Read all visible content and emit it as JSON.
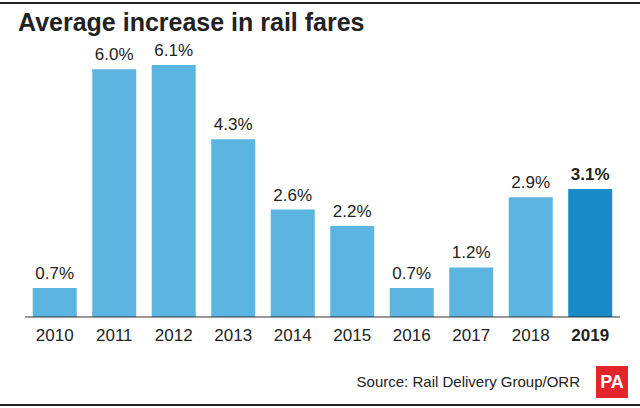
{
  "chart_data": {
    "type": "bar",
    "title": "Average increase in rail fares",
    "categories": [
      "2010",
      "2011",
      "2012",
      "2013",
      "2014",
      "2015",
      "2016",
      "2017",
      "2018",
      "2019"
    ],
    "values": [
      0.7,
      6.0,
      6.1,
      4.3,
      2.6,
      2.2,
      0.7,
      1.2,
      2.9,
      3.1
    ],
    "value_labels": [
      "0.7%",
      "6.0%",
      "6.1%",
      "4.3%",
      "2.6%",
      "2.2%",
      "0.7%",
      "1.2%",
      "2.9%",
      "3.1%"
    ],
    "colors": [
      "#5bb5e0",
      "#5bb5e0",
      "#5bb5e0",
      "#5bb5e0",
      "#5bb5e0",
      "#5bb5e0",
      "#5bb5e0",
      "#5bb5e0",
      "#5bb5e0",
      "#1a8bc9"
    ],
    "data_labels": true,
    "tick_labels": "x",
    "grid": false,
    "source": "Source: Rail Delivery Group/ORR",
    "credit": "PA"
  }
}
